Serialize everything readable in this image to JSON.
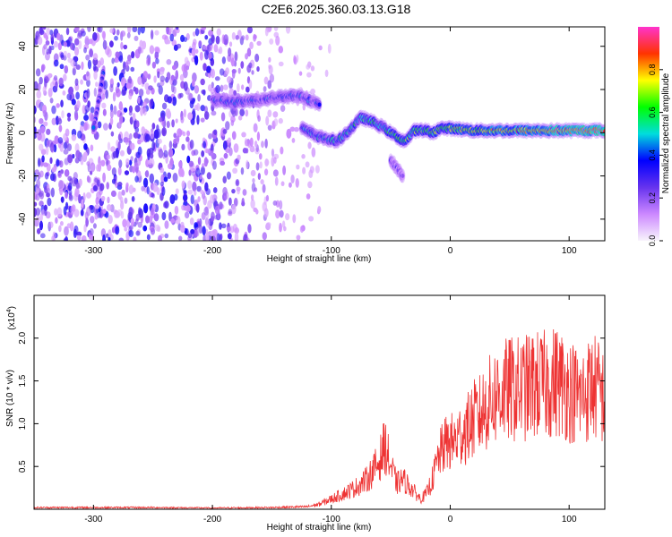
{
  "title": "C2E6.2025.360.03.13.G18",
  "chart_data": [
    {
      "type": "heatmap",
      "xlabel": "Height of straight line (km)",
      "ylabel": "Frequency (Hz)",
      "xlim": [
        -350,
        130
      ],
      "ylim": [
        -50,
        49
      ],
      "xticks": [
        -300,
        -200,
        -100,
        0,
        100
      ],
      "yticks": [
        -40,
        -20,
        0,
        20,
        40
      ],
      "colorbar": {
        "label": "Normalized spectral amplitude",
        "range": [
          0,
          1
        ],
        "ticks": [
          0,
          0.2,
          0.4,
          0.6,
          0.8
        ],
        "tick_labels": [
          "0.0",
          "0.2",
          "0.4",
          "0.6",
          "0.8"
        ],
        "colormap": [
          "#f8f4fc",
          "#cc88ff",
          "#6633ee",
          "#0000ff",
          "#00dddd",
          "#00ff00",
          "#ffff00",
          "#ff3300",
          "#ff33cc"
        ]
      },
      "features": [
        {
          "name": "upper-trace",
          "points": [
            [
              -200,
              15
            ],
            [
              -180,
              14
            ],
            [
              -160,
              15
            ],
            [
              -140,
              17
            ],
            [
              -125,
              17
            ],
            [
              -110,
              13
            ]
          ],
          "amplitude": 0.35
        },
        {
          "name": "main-trace",
          "points": [
            [
              -125,
              2
            ],
            [
              -110,
              -2
            ],
            [
              -95,
              -4
            ],
            [
              -85,
              1
            ],
            [
              -75,
              7
            ],
            [
              -65,
              5
            ],
            [
              -55,
              2
            ],
            [
              -45,
              -2
            ],
            [
              -38,
              -4
            ],
            [
              -30,
              1
            ],
            [
              -20,
              1
            ],
            [
              -15,
              0
            ],
            [
              -8,
              2
            ],
            [
              0,
              2
            ],
            [
              20,
              1
            ],
            [
              40,
              1
            ],
            [
              60,
              1
            ],
            [
              80,
              1
            ],
            [
              100,
              1
            ],
            [
              130,
              1
            ]
          ],
          "amplitude_start": 0.4,
          "amplitude_end": 0.95
        },
        {
          "name": "minor-trace",
          "points": [
            [
              -50,
              -13
            ],
            [
              -45,
              -16
            ],
            [
              -40,
              -20
            ]
          ],
          "amplitude": 0.25
        },
        {
          "name": "diagonal-streak",
          "points": [
            [
              -292,
              27
            ],
            [
              -296,
              14
            ],
            [
              -300,
              2
            ]
          ],
          "amplitude": 0.35
        }
      ],
      "background": {
        "description": "scattered noise dense below x=-150",
        "noise_extent_x": [
          -350,
          -140
        ]
      }
    },
    {
      "type": "line",
      "xlabel": "Height of straight line (km)",
      "ylabel": "SNR (10 * v/v)",
      "multiplier_label": "(x10",
      "multiplier_exponent": "4",
      "xlim": [
        -350,
        130
      ],
      "ylim": [
        0,
        25000
      ],
      "xticks": [
        -300,
        -200,
        -100,
        0,
        100
      ],
      "yticks": [
        5000,
        10000,
        15000,
        20000
      ],
      "ytick_labels": [
        "0.5",
        "1.0",
        "1.5",
        "2.0"
      ],
      "series": [
        {
          "color": "#ee3333",
          "x": [
            -350,
            -300,
            -250,
            -200,
            -150,
            -120,
            -110,
            -100,
            -90,
            -80,
            -70,
            -60,
            -55,
            -50,
            -45,
            -40,
            -35,
            -30,
            -25,
            -20,
            -15,
            -10,
            -5,
            0,
            5,
            10,
            15,
            20,
            25,
            30,
            40,
            50,
            60,
            70,
            80,
            90,
            100,
            110,
            120,
            130
          ],
          "y": [
            200,
            200,
            200,
            150,
            200,
            300,
            600,
            1200,
            1800,
            2500,
            3500,
            5500,
            7500,
            5000,
            3000,
            3500,
            2800,
            2000,
            1200,
            1800,
            3500,
            6000,
            7500,
            7800,
            8000,
            9000,
            9500,
            10500,
            11000,
            12000,
            13500,
            14000,
            14000,
            14500,
            14500,
            15000,
            14000,
            13000,
            14500,
            13000
          ]
        }
      ]
    }
  ]
}
